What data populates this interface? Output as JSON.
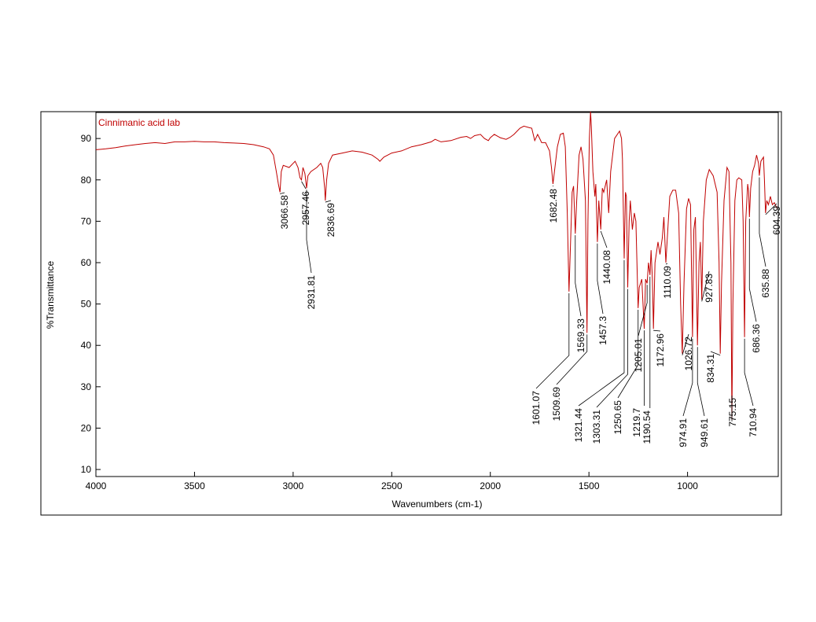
{
  "chart_data": {
    "type": "line",
    "title": "Cinnimanic acid lab",
    "xlabel": "Wavenumbers (cm-1)",
    "ylabel": "%Transmittance",
    "xlim": [
      4000,
      540
    ],
    "ylim": [
      8.3,
      96.3
    ],
    "xticks": [
      4000,
      3500,
      3000,
      2500,
      2000,
      1500,
      1000
    ],
    "yticks": [
      10,
      20,
      30,
      40,
      50,
      60,
      70,
      80,
      90
    ],
    "x": [
      4000,
      3950,
      3900,
      3850,
      3800,
      3750,
      3700,
      3650,
      3600,
      3550,
      3500,
      3450,
      3400,
      3350,
      3300,
      3250,
      3200,
      3150,
      3120,
      3100,
      3085,
      3075,
      3066.58,
      3060,
      3050,
      3020,
      3000,
      2990,
      2975,
      2965,
      2957.46,
      2950,
      2940,
      2931.81,
      2925,
      2910,
      2880,
      2860,
      2850,
      2840,
      2836.69,
      2830,
      2820,
      2800,
      2750,
      2700,
      2650,
      2600,
      2570,
      2560,
      2540,
      2500,
      2450,
      2400,
      2350,
      2300,
      2280,
      2250,
      2200,
      2150,
      2120,
      2100,
      2080,
      2050,
      2030,
      2010,
      2000,
      1980,
      1950,
      1920,
      1900,
      1880,
      1850,
      1830,
      1800,
      1790,
      1775,
      1760,
      1750,
      1740,
      1720,
      1700,
      1690,
      1682.48,
      1675,
      1660,
      1645,
      1630,
      1620,
      1610,
      1601.07,
      1595,
      1585,
      1578,
      1569.33,
      1562,
      1550,
      1540,
      1530,
      1518,
      1509.69,
      1505,
      1498,
      1492,
      1488,
      1480,
      1470,
      1465,
      1457.3,
      1450,
      1440.08,
      1432,
      1425,
      1410,
      1400,
      1390,
      1370,
      1345,
      1335,
      1330,
      1321.44,
      1315,
      1310,
      1303.31,
      1296,
      1290,
      1280,
      1270,
      1262,
      1250.65,
      1245,
      1232,
      1219.7,
      1213,
      1205.01,
      1198,
      1190.54,
      1185,
      1178,
      1172.96,
      1165,
      1150,
      1140,
      1128,
      1120,
      1110.09,
      1100,
      1090,
      1075,
      1060,
      1045,
      1035,
      1026.72,
      1018,
      1005,
      995,
      985,
      974.91,
      968,
      960,
      949.61,
      942,
      935,
      927.83,
      920,
      905,
      890,
      870,
      850,
      840,
      834.31,
      828,
      815,
      800,
      790,
      780,
      775.15,
      770,
      760,
      750,
      740,
      725,
      718,
      710.94,
      705,
      695,
      690,
      686.36,
      680,
      670,
      660,
      650,
      640,
      635.88,
      628,
      615,
      610,
      604.39,
      598,
      590,
      580,
      570,
      560,
      545
    ],
    "series": [
      {
        "color": "#c00000",
        "values": [
          87.3,
          87.5,
          87.8,
          88.2,
          88.5,
          88.8,
          89,
          88.8,
          89.2,
          89.2,
          89.3,
          89.2,
          89.2,
          89,
          88.9,
          88.8,
          88.5,
          88,
          87.5,
          86,
          82,
          79,
          77,
          82,
          83.5,
          83,
          84,
          84.5,
          83,
          80.5,
          80,
          83,
          81.5,
          78,
          81,
          82,
          83,
          84,
          83,
          78,
          75,
          80,
          84,
          86,
          86.5,
          87,
          86.7,
          86,
          85,
          84.5,
          85.5,
          86.5,
          87,
          88,
          88.5,
          89.2,
          89.8,
          89.2,
          89.5,
          90.3,
          90.5,
          90,
          90.7,
          91,
          90,
          89.5,
          90.2,
          91,
          90.2,
          89.8,
          90.3,
          91,
          92.5,
          93,
          92.6,
          92.5,
          89.5,
          91,
          90,
          89,
          89,
          87,
          83,
          79,
          82,
          88,
          91,
          91.3,
          88,
          72,
          53,
          62,
          77,
          78.5,
          67,
          75,
          86,
          88,
          85,
          75,
          43,
          70,
          90,
          96.5,
          93,
          82,
          76,
          79,
          65,
          75,
          68,
          78,
          77,
          80,
          72,
          82,
          90,
          91.8,
          90,
          85,
          61,
          77,
          76,
          54,
          70,
          75,
          68,
          72,
          70,
          49,
          54,
          56,
          44,
          56,
          55,
          60,
          57,
          63,
          56,
          44,
          60,
          65,
          62,
          66,
          71,
          60,
          68,
          76,
          77.5,
          77.5,
          72,
          50,
          38,
          55,
          73,
          75.5,
          74,
          42,
          68,
          71,
          40,
          60,
          65,
          51,
          70,
          80,
          82.5,
          81,
          77,
          60,
          38,
          55,
          75,
          83,
          82,
          60,
          22,
          50,
          75,
          80,
          80.5,
          80,
          70,
          42,
          70,
          79,
          77,
          71,
          78,
          82,
          83.5,
          86,
          84,
          81,
          84.5,
          85.5,
          80,
          72,
          75,
          74,
          76,
          74,
          74.5,
          73
        ]
      }
    ],
    "peaks": [
      3066.58,
      2957.46,
      2931.81,
      2836.69,
      1682.48,
      1601.07,
      1569.33,
      1509.69,
      1457.3,
      1440.08,
      1321.44,
      1303.31,
      1250.65,
      1219.7,
      1205.01,
      1190.54,
      1172.96,
      1110.09,
      1026.72,
      974.91,
      949.61,
      927.83,
      834.31,
      775.15,
      710.94,
      686.36,
      635.88,
      604.39
    ]
  }
}
